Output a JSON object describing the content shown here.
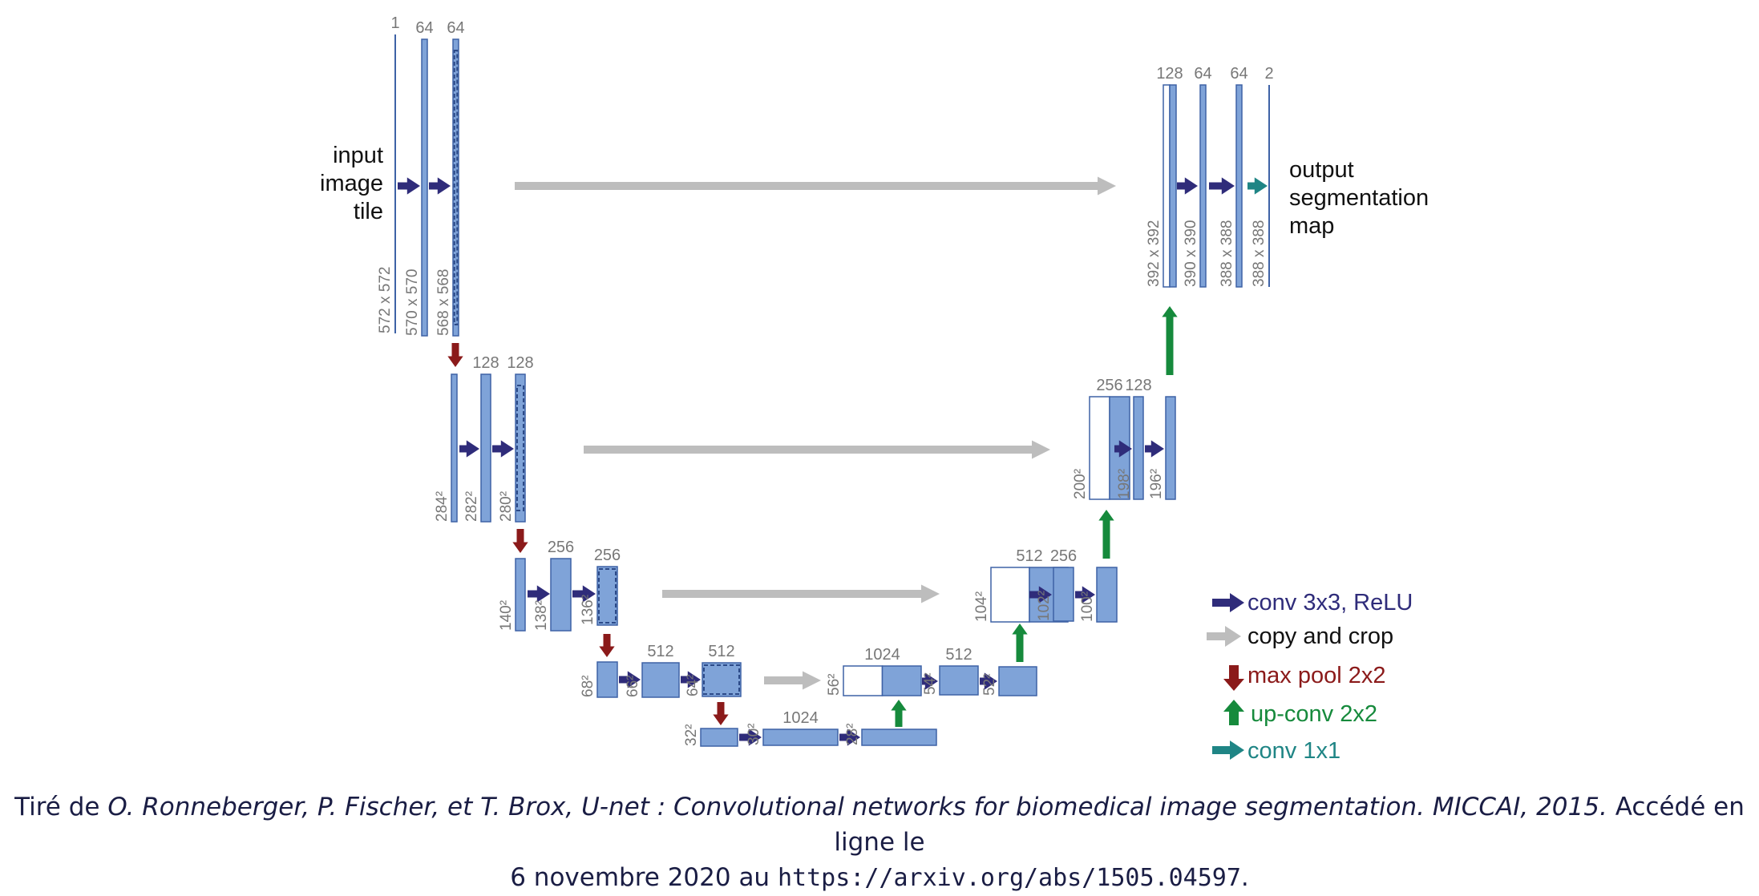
{
  "colors": {
    "block": "#7fa3d8",
    "block_stroke": "#3e62a6",
    "conv": "#2f2c7a",
    "copy": "#bdbdbd",
    "pool": "#8b1a1a",
    "upconv": "#168a3c",
    "conv1x1": "#1f8585",
    "label": "#777777"
  },
  "input_label": [
    "input",
    "image",
    "tile"
  ],
  "output_label": [
    "output",
    "segmentation",
    "map"
  ],
  "blocks": [
    {
      "id": "enc1-in",
      "channels": "1",
      "size": "572 x 572"
    },
    {
      "id": "enc1-conv1",
      "channels": "64",
      "size": "570 x 570"
    },
    {
      "id": "enc1-conv2",
      "channels": "64",
      "size": "568 x 568"
    },
    {
      "id": "enc2-in",
      "channels": "",
      "size": "284²"
    },
    {
      "id": "enc2-conv1",
      "channels": "128",
      "size": "282²"
    },
    {
      "id": "enc2-conv2",
      "channels": "128",
      "size": "280²"
    },
    {
      "id": "enc3-in",
      "channels": "",
      "size": "140²"
    },
    {
      "id": "enc3-conv1",
      "channels": "256",
      "size": "138²"
    },
    {
      "id": "enc3-conv2",
      "channels": "256",
      "size": "136²"
    },
    {
      "id": "enc4-in",
      "channels": "",
      "size": "68²"
    },
    {
      "id": "enc4-conv1",
      "channels": "512",
      "size": "66²"
    },
    {
      "id": "enc4-conv2",
      "channels": "512",
      "size": "64²"
    },
    {
      "id": "bot-in",
      "channels": "",
      "size": "32²"
    },
    {
      "id": "bot-conv1",
      "channels": "1024",
      "size": "30²"
    },
    {
      "id": "bot-conv2",
      "channels": "",
      "size": "28²"
    },
    {
      "id": "dec4-in",
      "channels": "1024",
      "size": "56²"
    },
    {
      "id": "dec4-conv1",
      "channels": "512",
      "size": "54²"
    },
    {
      "id": "dec4-conv2",
      "channels": "",
      "size": "52²"
    },
    {
      "id": "dec3-in",
      "channels": "512",
      "size": "104²"
    },
    {
      "id": "dec3-conv1",
      "channels": "256",
      "size": "102²"
    },
    {
      "id": "dec3-conv2",
      "channels": "",
      "size": "100²"
    },
    {
      "id": "dec2-in",
      "channels": "256",
      "size": "200²"
    },
    {
      "id": "dec2-conv1",
      "channels": "128",
      "size": "198²"
    },
    {
      "id": "dec2-conv2",
      "channels": "",
      "size": "196²"
    },
    {
      "id": "dec1-in",
      "channels": "128",
      "size": "392 x 392"
    },
    {
      "id": "dec1-conv1",
      "channels": "64",
      "size": "390 x 390"
    },
    {
      "id": "dec1-conv2",
      "channels": "64",
      "size": "388 x 388"
    },
    {
      "id": "out",
      "channels": "2",
      "size": "388 x 388"
    }
  ],
  "legend": [
    {
      "key": "conv",
      "label": "conv 3x3, ReLU"
    },
    {
      "key": "copy",
      "label": "copy and crop"
    },
    {
      "key": "pool",
      "label": "max pool 2x2"
    },
    {
      "key": "upconv",
      "label": "up-conv 2x2"
    },
    {
      "key": "conv1x1",
      "label": "conv 1x1"
    }
  ],
  "caption": {
    "prefix": "Tiré de ",
    "citation": "O. Ronneberger, P. Fischer, et T. Brox, U-net : Convolutional networks for biomedical image segmentation. MICCAI, 2015.",
    "middle": " Accédé en ligne le",
    "line2": "6 novembre 2020 au ",
    "url": "https://arxiv.org/abs/1505.04597",
    "suffix": "."
  }
}
